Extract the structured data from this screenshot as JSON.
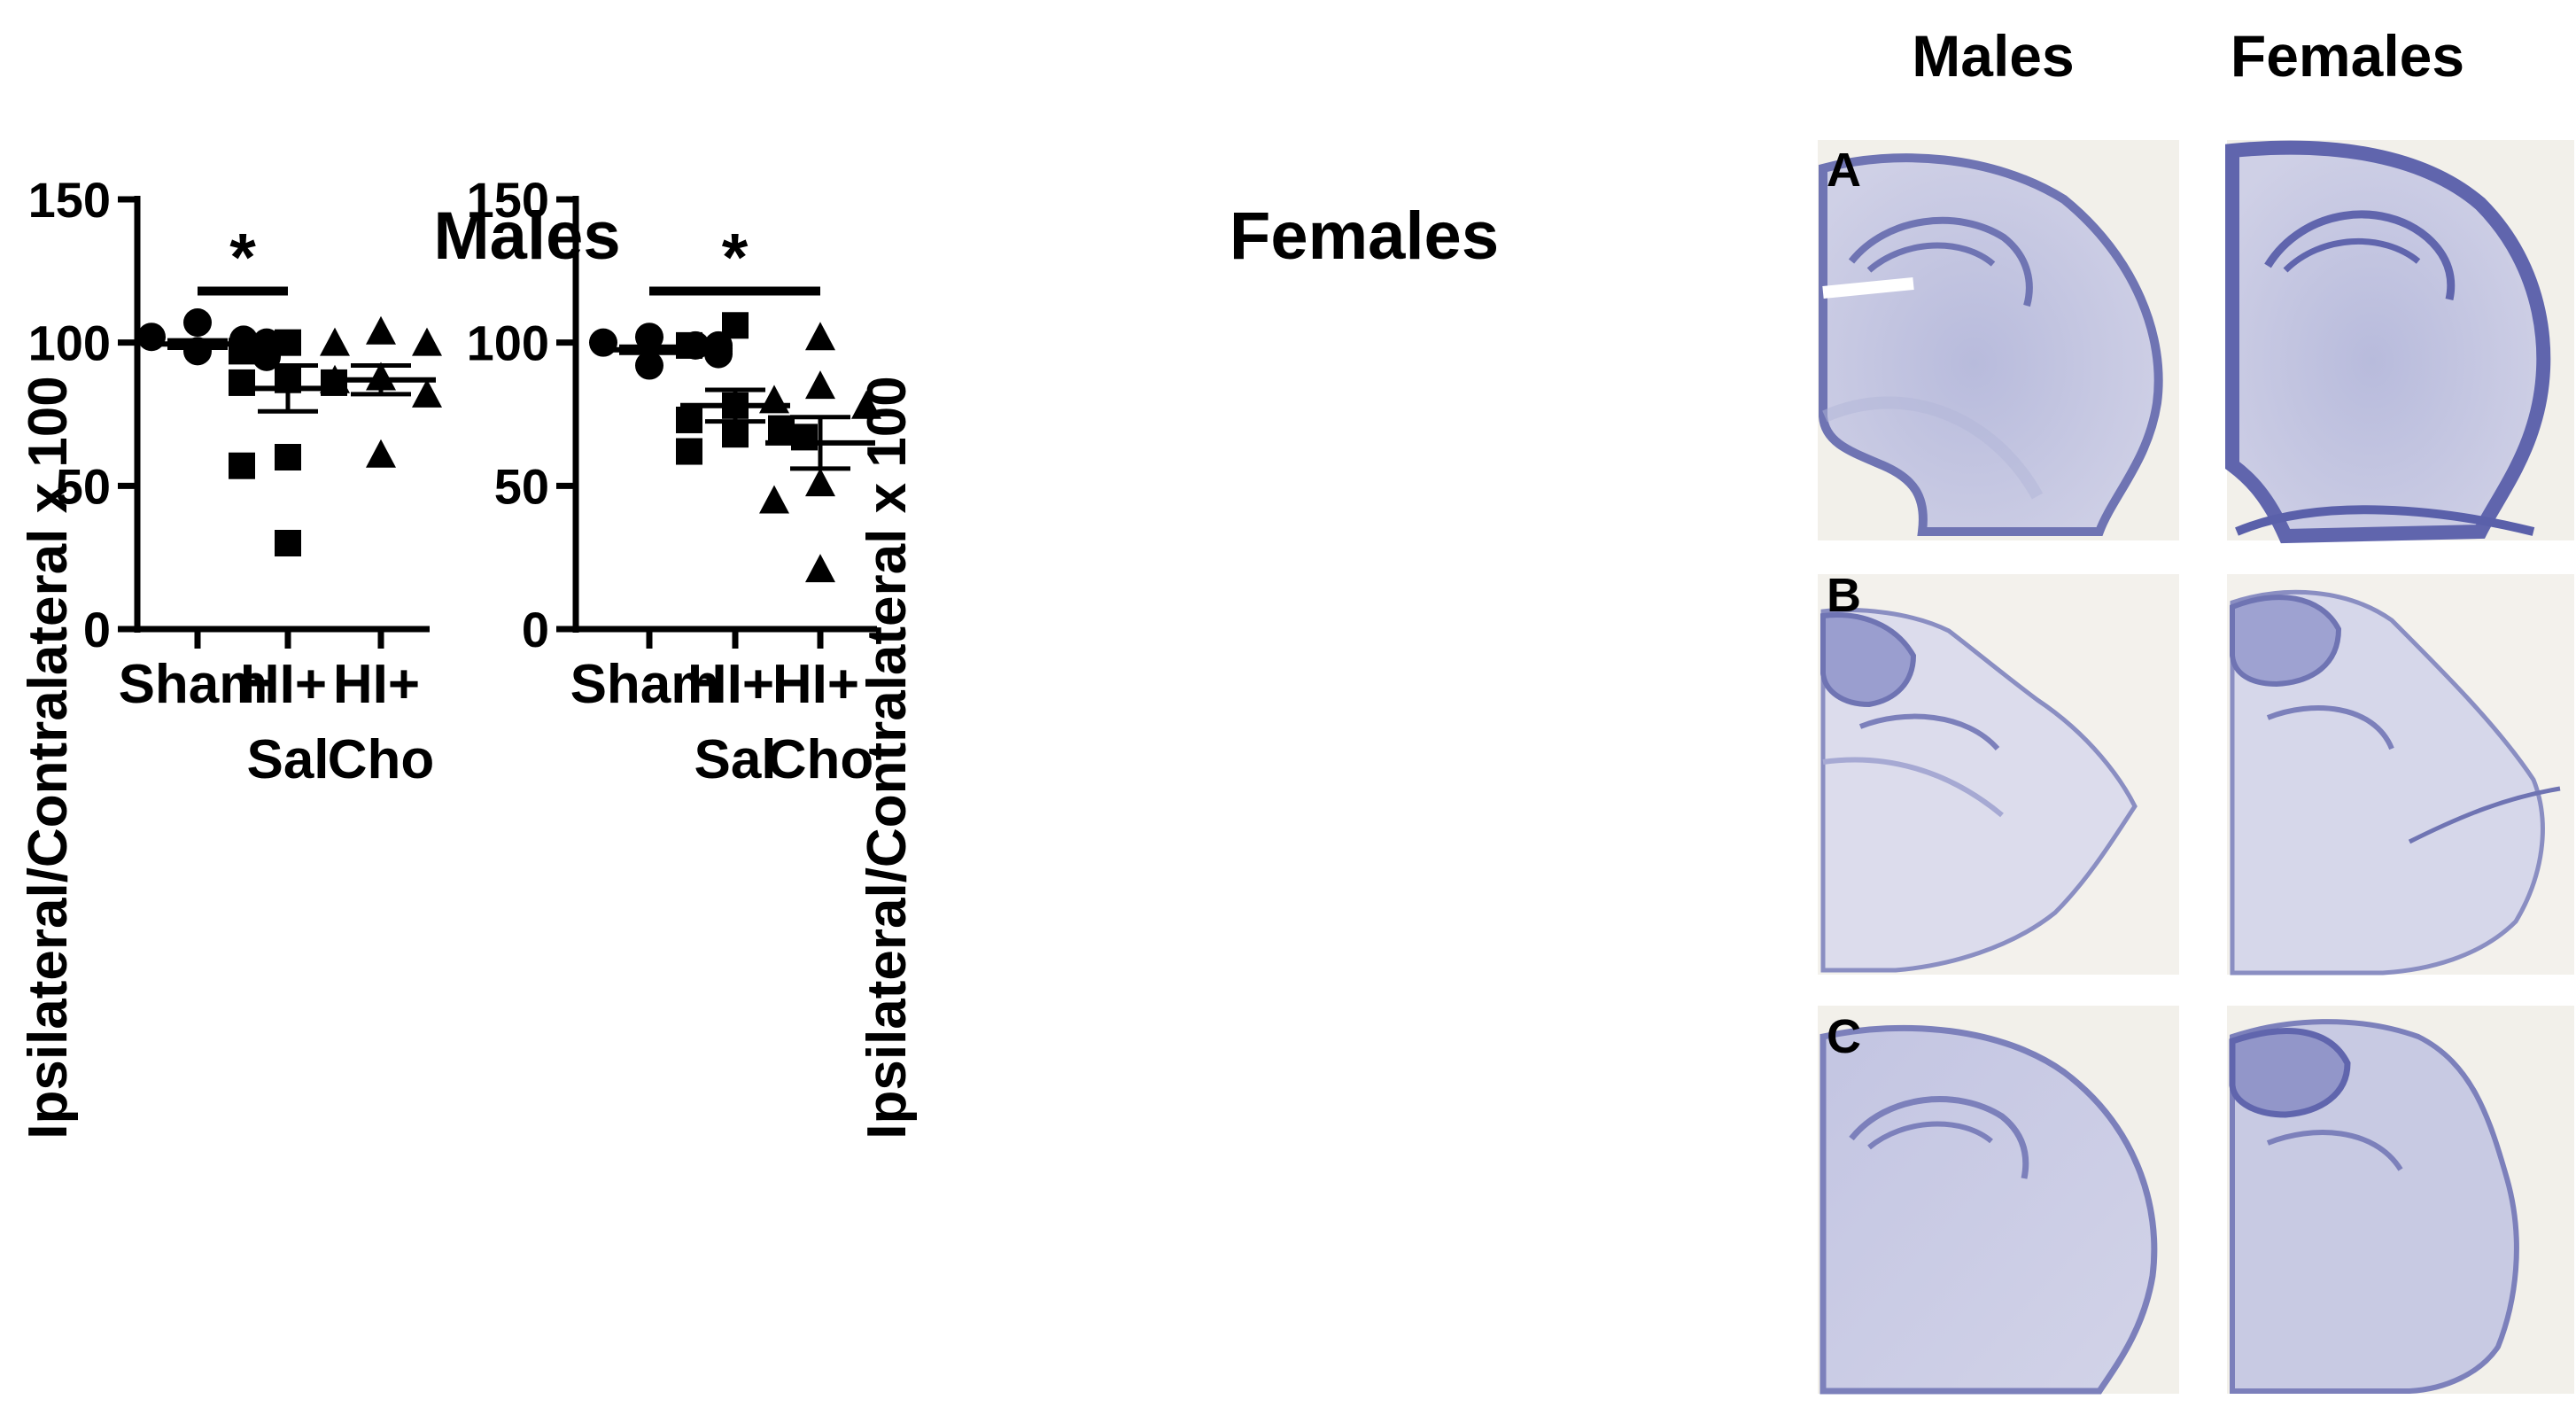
{
  "chart_data": [
    {
      "type": "scatter",
      "title": "Males",
      "ylabel": "Ipsilateral/Contralateral x 100",
      "xlabel": "",
      "ylim": [
        0,
        150
      ],
      "yticks": [
        0,
        50,
        100,
        150
      ],
      "categories": [
        {
          "line1": "Sham",
          "line2": ""
        },
        {
          "line1": "HI+",
          "line2": "Sal"
        },
        {
          "line1": "HI+",
          "line2": "Cho"
        }
      ],
      "series": [
        {
          "name": "Sham",
          "marker": "circle",
          "values": [
            107,
            102,
            101,
            100,
            99,
            97,
            96,
            95
          ],
          "mean": 99.5,
          "sem": 1.3
        },
        {
          "name": "HI+ Sal",
          "marker": "square",
          "values": [
            100,
            97,
            87,
            86,
            86,
            60,
            57,
            30
          ],
          "mean": 84,
          "sem": 8
        },
        {
          "name": "HI+ Cho",
          "marker": "triangle",
          "values": [
            104,
            100,
            100,
            88,
            87,
            82,
            61
          ],
          "mean": 87,
          "sem": 5
        }
      ],
      "significance": [
        {
          "from": 0,
          "to": 1,
          "label": "*",
          "y": 118
        }
      ]
    },
    {
      "type": "scatter",
      "title": "Females",
      "ylabel": "Ipsilateral/Contralateral x 100",
      "xlabel": "",
      "ylim": [
        0,
        150
      ],
      "yticks": [
        0,
        50,
        100,
        150
      ],
      "categories": [
        {
          "line1": "Sham",
          "line2": ""
        },
        {
          "line1": "HI+",
          "line2": "Sal"
        },
        {
          "line1": "HI+",
          "line2": "Cho"
        }
      ],
      "series": [
        {
          "name": "Sham",
          "marker": "circle",
          "values": [
            102,
            100,
            99,
            99,
            98,
            97,
            96,
            92
          ],
          "mean": 97.5,
          "sem": 1.1
        },
        {
          "name": "HI+ Sal",
          "marker": "square",
          "values": [
            106,
            99,
            78,
            73,
            70,
            68,
            67,
            62
          ],
          "mean": 78,
          "sem": 5.5
        },
        {
          "name": "HI+ Cho",
          "marker": "triangle",
          "values": [
            102,
            85,
            80,
            78,
            51,
            45,
            21
          ],
          "mean": 65,
          "sem": 9
        }
      ],
      "significance": [
        {
          "from": 0,
          "to": 2,
          "label": "*",
          "y": 118
        }
      ]
    }
  ],
  "histology": {
    "column_headers": [
      "Males",
      "Females"
    ],
    "row_labels": [
      "A",
      "B",
      "C"
    ],
    "stain_color": "#7a7fb8",
    "background_color": "#f1efe8"
  }
}
